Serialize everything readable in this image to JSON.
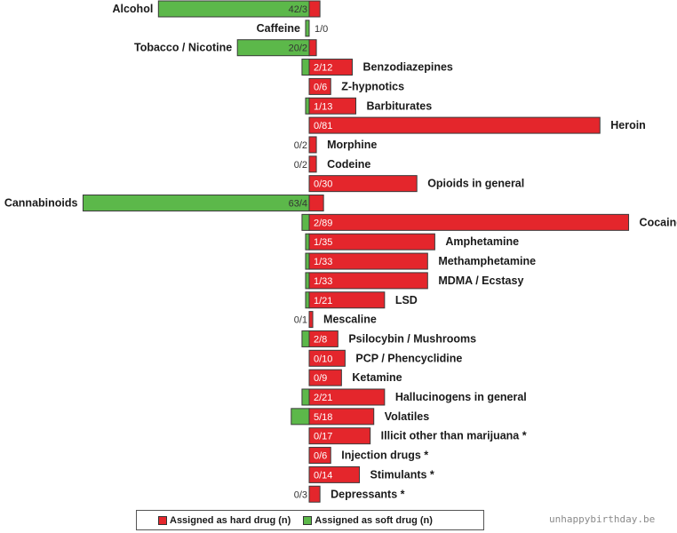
{
  "chart_data": {
    "type": "bar",
    "orientation": "horizontal-diverging",
    "colors": {
      "hard": "#e4262c",
      "soft": "#5cb84a",
      "stroke": "#3a3a3a"
    },
    "series": [
      {
        "name": "Assigned as hard drug (n)",
        "key": "hard"
      },
      {
        "name": "Assigned as soft drug (n)",
        "key": "soft"
      }
    ],
    "rows": [
      {
        "category": "Alcohol",
        "soft": 42,
        "hard": 3,
        "value_label": "42/3"
      },
      {
        "category": "Caffeine",
        "soft": 1,
        "hard": 0,
        "value_label": "1/0"
      },
      {
        "category": "Tobacco / Nicotine",
        "soft": 20,
        "hard": 2,
        "value_label": "20/2"
      },
      {
        "category": "Benzodiazepines",
        "soft": 2,
        "hard": 12,
        "value_label": "2/12"
      },
      {
        "category": "Z-hypnotics",
        "soft": 0,
        "hard": 6,
        "value_label": "0/6"
      },
      {
        "category": "Barbiturates",
        "soft": 1,
        "hard": 13,
        "value_label": "1/13"
      },
      {
        "category": "Heroin",
        "soft": 0,
        "hard": 81,
        "value_label": "0/81"
      },
      {
        "category": "Morphine",
        "soft": 0,
        "hard": 2,
        "value_label": "0/2"
      },
      {
        "category": "Codeine",
        "soft": 0,
        "hard": 2,
        "value_label": "0/2"
      },
      {
        "category": "Opioids in general",
        "soft": 0,
        "hard": 30,
        "value_label": "0/30"
      },
      {
        "category": "Cannabinoids",
        "soft": 63,
        "hard": 4,
        "value_label": "63/4"
      },
      {
        "category": "Cocaine",
        "soft": 2,
        "hard": 89,
        "value_label": "2/89"
      },
      {
        "category": "Amphetamine",
        "soft": 1,
        "hard": 35,
        "value_label": "1/35"
      },
      {
        "category": "Methamphetamine",
        "soft": 1,
        "hard": 33,
        "value_label": "1/33"
      },
      {
        "category": "MDMA / Ecstasy",
        "soft": 1,
        "hard": 33,
        "value_label": "1/33"
      },
      {
        "category": "LSD",
        "soft": 1,
        "hard": 21,
        "value_label": "1/21"
      },
      {
        "category": "Mescaline",
        "soft": 0,
        "hard": 1,
        "value_label": "0/1"
      },
      {
        "category": "Psilocybin / Mushrooms",
        "soft": 2,
        "hard": 8,
        "value_label": "2/8"
      },
      {
        "category": "PCP / Phencyclidine",
        "soft": 0,
        "hard": 10,
        "value_label": "0/10"
      },
      {
        "category": "Ketamine",
        "soft": 0,
        "hard": 9,
        "value_label": "0/9"
      },
      {
        "category": "Hallucinogens in general",
        "soft": 2,
        "hard": 21,
        "value_label": "2/21"
      },
      {
        "category": "Volatiles",
        "soft": 5,
        "hard": 18,
        "value_label": "5/18"
      },
      {
        "category": "Illicit other than marijuana *",
        "soft": 0,
        "hard": 17,
        "value_label": "0/17"
      },
      {
        "category": "Injection drugs *",
        "soft": 0,
        "hard": 6,
        "value_label": "0/6"
      },
      {
        "category": "Stimulants *",
        "soft": 0,
        "hard": 14,
        "value_label": "0/14"
      },
      {
        "category": "Depressants *",
        "soft": 0,
        "hard": 3,
        "value_label": "0/3"
      }
    ]
  },
  "legend": {
    "hard_label": "Assigned as hard drug (n)",
    "soft_label": "Assigned as soft drug (n)"
  },
  "watermark": "unhappybirthday.be"
}
